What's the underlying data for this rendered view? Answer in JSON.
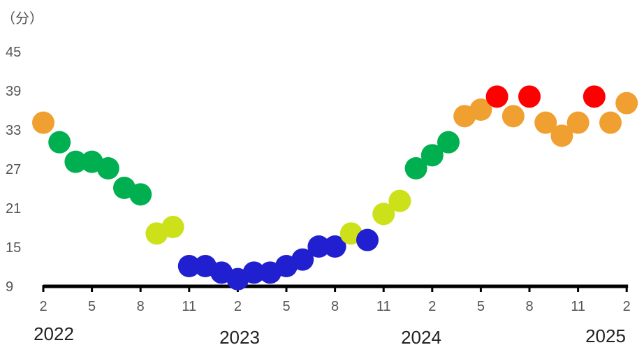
{
  "chart_data": {
    "type": "scatter",
    "ylabel": "（分）",
    "ylim": [
      9,
      45
    ],
    "yticks": [
      "45",
      "39",
      "33",
      "27",
      "21",
      "15",
      "9"
    ],
    "xticks": [
      "2",
      "5",
      "8",
      "11",
      "2",
      "5",
      "8",
      "11",
      "2",
      "5",
      "8",
      "11",
      "2"
    ],
    "years": [
      "2022",
      "2023",
      "2024",
      "2025"
    ],
    "grid": false,
    "colors": {
      "orange": "#F0A030",
      "green": "#00B050",
      "lime": "#CCE11A",
      "blue": "#2020D0",
      "red": "#FF0000",
      "axis": "#000000"
    },
    "points": [
      {
        "date": "2022-02",
        "value": 34,
        "color": "orange"
      },
      {
        "date": "2022-03",
        "value": 31,
        "color": "green"
      },
      {
        "date": "2022-04",
        "value": 28,
        "color": "green"
      },
      {
        "date": "2022-05",
        "value": 28,
        "color": "green"
      },
      {
        "date": "2022-06",
        "value": 27,
        "color": "green"
      },
      {
        "date": "2022-07",
        "value": 24,
        "color": "green"
      },
      {
        "date": "2022-08",
        "value": 23,
        "color": "green"
      },
      {
        "date": "2022-09",
        "value": 17,
        "color": "lime"
      },
      {
        "date": "2022-10",
        "value": 18,
        "color": "lime"
      },
      {
        "date": "2022-11",
        "value": 12,
        "color": "blue"
      },
      {
        "date": "2022-12",
        "value": 12,
        "color": "blue"
      },
      {
        "date": "2023-01",
        "value": 11,
        "color": "blue"
      },
      {
        "date": "2023-02",
        "value": 10,
        "color": "blue"
      },
      {
        "date": "2023-03",
        "value": 11,
        "color": "blue"
      },
      {
        "date": "2023-04",
        "value": 11,
        "color": "blue"
      },
      {
        "date": "2023-05",
        "value": 12,
        "color": "blue"
      },
      {
        "date": "2023-06",
        "value": 13,
        "color": "blue"
      },
      {
        "date": "2023-07",
        "value": 15,
        "color": "blue"
      },
      {
        "date": "2023-08",
        "value": 15,
        "color": "blue"
      },
      {
        "date": "2023-09",
        "value": 17,
        "color": "lime"
      },
      {
        "date": "2023-10",
        "value": 16,
        "color": "blue"
      },
      {
        "date": "2023-11",
        "value": 20,
        "color": "lime"
      },
      {
        "date": "2023-12",
        "value": 22,
        "color": "lime"
      },
      {
        "date": "2024-01",
        "value": 27,
        "color": "green"
      },
      {
        "date": "2024-02",
        "value": 29,
        "color": "green"
      },
      {
        "date": "2024-03",
        "value": 31,
        "color": "green"
      },
      {
        "date": "2024-04",
        "value": 35,
        "color": "orange"
      },
      {
        "date": "2024-05",
        "value": 36,
        "color": "orange"
      },
      {
        "date": "2024-06",
        "value": 38,
        "color": "red"
      },
      {
        "date": "2024-07",
        "value": 35,
        "color": "orange"
      },
      {
        "date": "2024-08",
        "value": 38,
        "color": "red"
      },
      {
        "date": "2024-09",
        "value": 34,
        "color": "orange"
      },
      {
        "date": "2024-10",
        "value": 32,
        "color": "orange"
      },
      {
        "date": "2024-11",
        "value": 34,
        "color": "orange"
      },
      {
        "date": "2024-12",
        "value": 38,
        "color": "red"
      },
      {
        "date": "2025-01",
        "value": 34,
        "color": "orange"
      },
      {
        "date": "2025-02",
        "value": 37,
        "color": "orange"
      }
    ]
  }
}
